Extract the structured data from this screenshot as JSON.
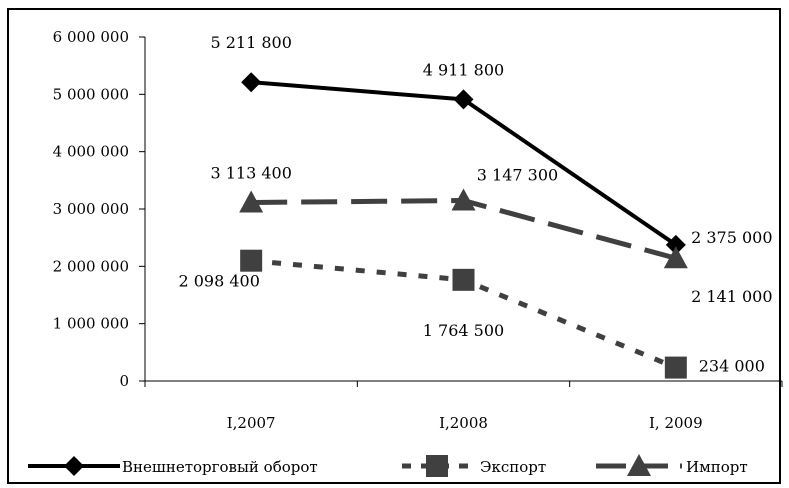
{
  "chart_data": {
    "type": "line",
    "categories": [
      "I,2007",
      "I,2008",
      "I, 2009"
    ],
    "ylim": [
      0,
      6000000
    ],
    "yticks": [
      0,
      1000000,
      2000000,
      3000000,
      4000000,
      5000000,
      6000000
    ],
    "ytick_labels": [
      "0",
      "1 000 000",
      "2 000 000",
      "3 000 000",
      "4 000 000",
      "5 000 000",
      "6 000 000"
    ],
    "grid": false,
    "legend_position": "bottom",
    "series": [
      {
        "name": "Внешнеторговый оборот",
        "values": [
          5211800,
          4911800,
          2375000
        ],
        "labels": [
          "5 211 800",
          "4 911 800",
          "2 375 000"
        ],
        "color": "#000000",
        "line_style": "solid",
        "marker": "diamond"
      },
      {
        "name": "Экспорт",
        "values": [
          2098400,
          1764500,
          234000
        ],
        "labels": [
          "2 098 400",
          "1 764 500",
          "234 000"
        ],
        "color": "#404040",
        "line_style": "dotted",
        "marker": "square"
      },
      {
        "name": "Импорт",
        "values": [
          3113400,
          3147300,
          2141000
        ],
        "labels": [
          "3 113 400",
          "3 147 300",
          "2 141 000"
        ],
        "color": "#404040",
        "line_style": "dashed",
        "marker": "triangle"
      }
    ]
  }
}
